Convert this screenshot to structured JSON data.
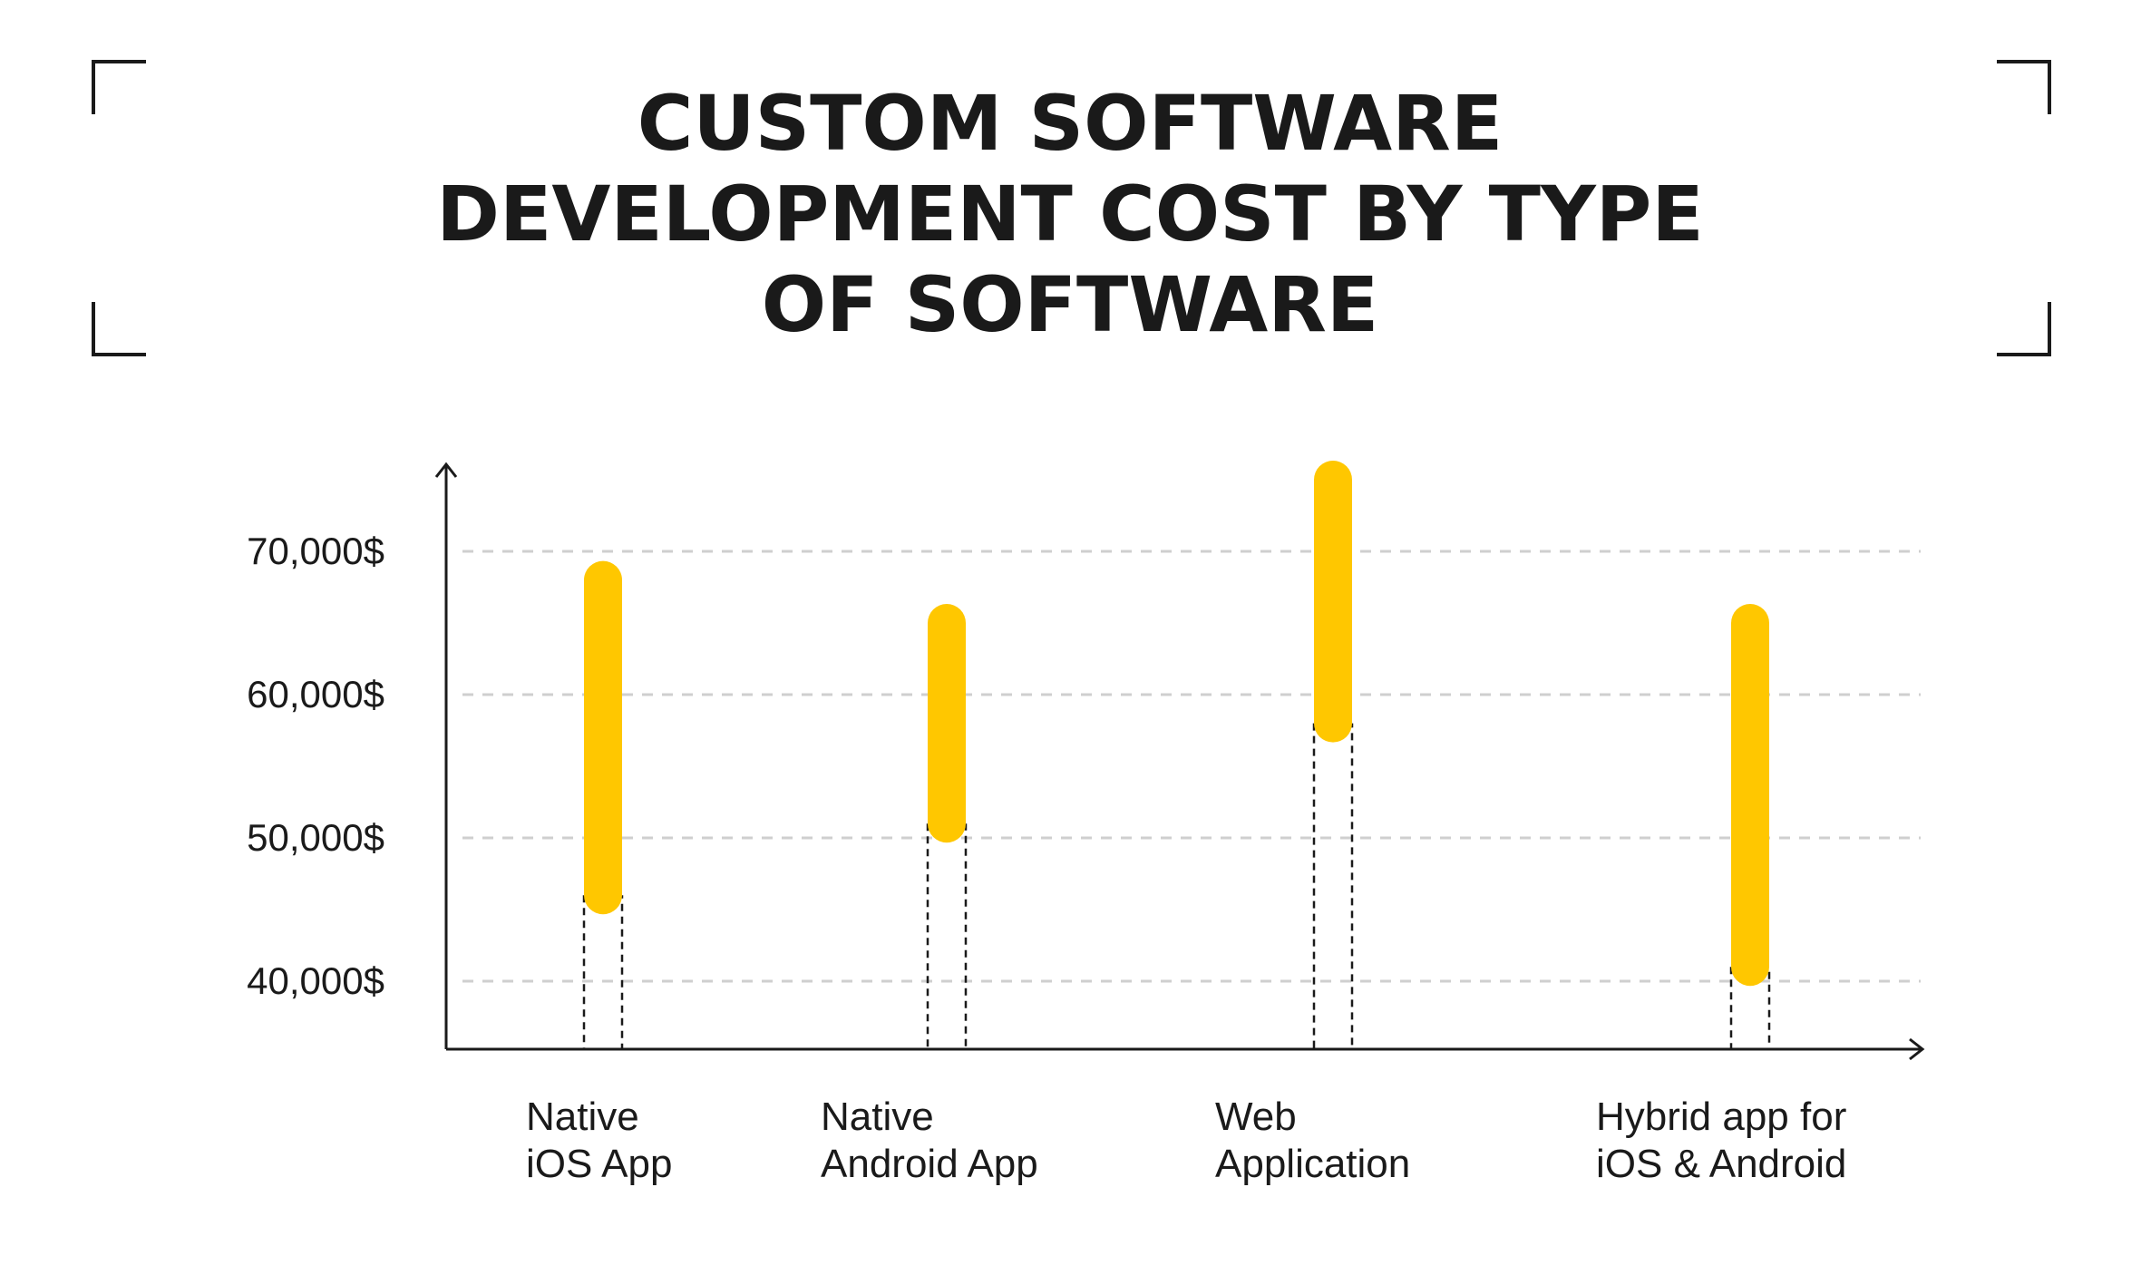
{
  "title_lines": [
    "CUSTOM SOFTWARE",
    "DEVELOPMENT COST BY TYPE",
    "OF SOFTWARE"
  ],
  "colors": {
    "bar": "#FFC700",
    "axis": "#1a1a1a",
    "grid": "#cfcfcf",
    "text": "#1a1a1a"
  },
  "chart_data": {
    "type": "range-bar",
    "title": "CUSTOM SOFTWARE DEVELOPMENT COST BY TYPE OF SOFTWARE",
    "categories": [
      [
        "Native",
        "iOS App"
      ],
      [
        "Native",
        "Android App"
      ],
      [
        "Web",
        "Application"
      ],
      [
        "Hybrid app for",
        "iOS & Android"
      ]
    ],
    "ranges": [
      {
        "low": 46000,
        "high": 68000
      },
      {
        "low": 51000,
        "high": 65000
      },
      {
        "low": 58000,
        "high": 75000
      },
      {
        "low": 41000,
        "high": 65000
      }
    ],
    "yticks": [
      40000,
      50000,
      60000,
      70000
    ],
    "ytick_labels": [
      "40,000$",
      "50,000$",
      "60,000$",
      "70,000$"
    ],
    "ylim": [
      35000,
      76000
    ],
    "grid": "horizontal-dashed",
    "xlabel": "",
    "ylabel": ""
  }
}
